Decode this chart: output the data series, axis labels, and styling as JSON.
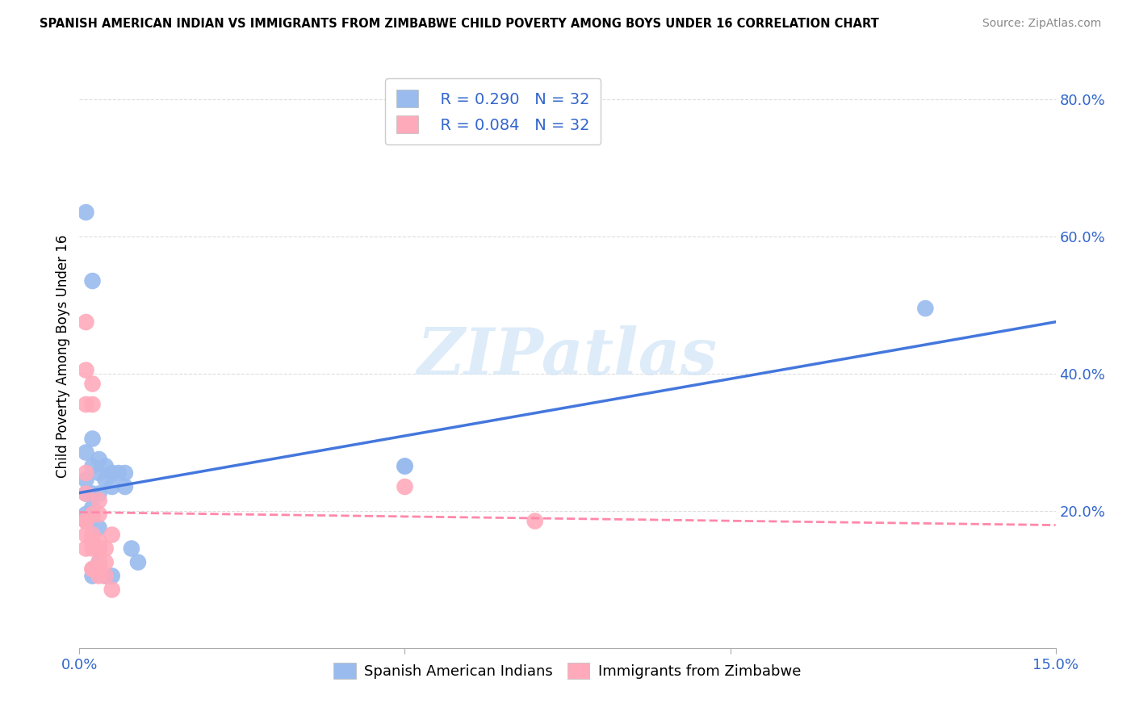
{
  "title": "SPANISH AMERICAN INDIAN VS IMMIGRANTS FROM ZIMBABWE CHILD POVERTY AMONG BOYS UNDER 16 CORRELATION CHART",
  "source": "Source: ZipAtlas.com",
  "ylabel": "Child Poverty Among Boys Under 16",
  "xlim": [
    0.0,
    0.15
  ],
  "ylim": [
    0.0,
    0.85
  ],
  "xticks": [
    0.0,
    0.05,
    0.1,
    0.15
  ],
  "xtick_labels": [
    "0.0%",
    "",
    "",
    "15.0%"
  ],
  "ytick_labels_right": [
    "20.0%",
    "40.0%",
    "60.0%",
    "80.0%"
  ],
  "ytick_vals_right": [
    0.2,
    0.4,
    0.6,
    0.8
  ],
  "blue_color": "#99bbee",
  "pink_color": "#ffaabb",
  "blue_line_color": "#4477dd",
  "pink_line_color": "#ff88aa",
  "legend_R_blue": "R = 0.290",
  "legend_N_blue": "N = 32",
  "legend_R_pink": "R = 0.084",
  "legend_N_pink": "N = 32",
  "watermark": "ZIPatlas",
  "blue_x": [
    0.001,
    0.001,
    0.002,
    0.002,
    0.002,
    0.003,
    0.003,
    0.004,
    0.004,
    0.005,
    0.005,
    0.006,
    0.007,
    0.007,
    0.008,
    0.009,
    0.002,
    0.003,
    0.004,
    0.005,
    0.001,
    0.002,
    0.003,
    0.001,
    0.001,
    0.002,
    0.003,
    0.004,
    0.05,
    0.05,
    0.13,
    0.002
  ],
  "blue_y": [
    0.635,
    0.285,
    0.535,
    0.305,
    0.265,
    0.275,
    0.255,
    0.265,
    0.245,
    0.255,
    0.235,
    0.255,
    0.255,
    0.235,
    0.145,
    0.125,
    0.225,
    0.225,
    0.105,
    0.105,
    0.245,
    0.205,
    0.175,
    0.225,
    0.195,
    0.155,
    0.125,
    0.105,
    0.265,
    0.265,
    0.495,
    0.105
  ],
  "pink_x": [
    0.001,
    0.001,
    0.001,
    0.002,
    0.002,
    0.003,
    0.003,
    0.004,
    0.001,
    0.001,
    0.001,
    0.002,
    0.002,
    0.003,
    0.003,
    0.004,
    0.004,
    0.005,
    0.001,
    0.001,
    0.002,
    0.002,
    0.003,
    0.005,
    0.05,
    0.07,
    0.001,
    0.001,
    0.002,
    0.002,
    0.003,
    0.003
  ],
  "pink_y": [
    0.185,
    0.165,
    0.145,
    0.385,
    0.355,
    0.195,
    0.155,
    0.145,
    0.255,
    0.225,
    0.185,
    0.195,
    0.165,
    0.145,
    0.125,
    0.125,
    0.105,
    0.085,
    0.405,
    0.355,
    0.145,
    0.115,
    0.115,
    0.165,
    0.235,
    0.185,
    0.475,
    0.185,
    0.155,
    0.115,
    0.105,
    0.215
  ]
}
